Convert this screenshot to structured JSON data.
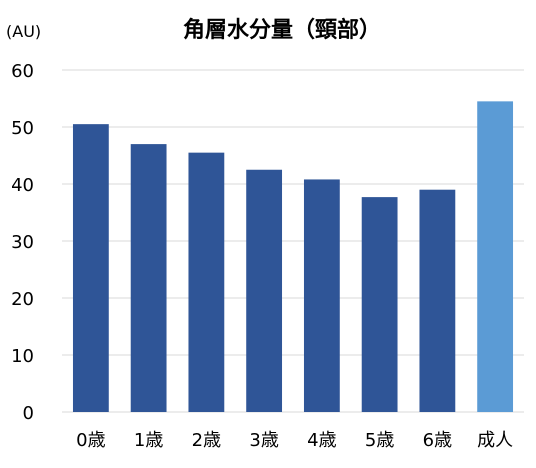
{
  "chart_data": {
    "type": "bar",
    "title": "角層水分量（頸部）",
    "unit_label": "(AU)",
    "xlabel": "",
    "ylabel": "",
    "categories": [
      "0歳",
      "1歳",
      "2歳",
      "3歳",
      "4歳",
      "5歳",
      "6歳",
      "成人"
    ],
    "values": [
      50.5,
      47.0,
      45.5,
      42.5,
      40.8,
      37.7,
      39.0,
      54.5
    ],
    "bar_colors": [
      "#2f5597",
      "#2f5597",
      "#2f5597",
      "#2f5597",
      "#2f5597",
      "#2f5597",
      "#2f5597",
      "#5b9bd5"
    ],
    "ylim": [
      0,
      60
    ],
    "yticks": [
      0,
      10,
      20,
      30,
      40,
      50,
      60
    ],
    "grid": true,
    "legend": "none",
    "gridline_color": "#d9d9d9"
  }
}
